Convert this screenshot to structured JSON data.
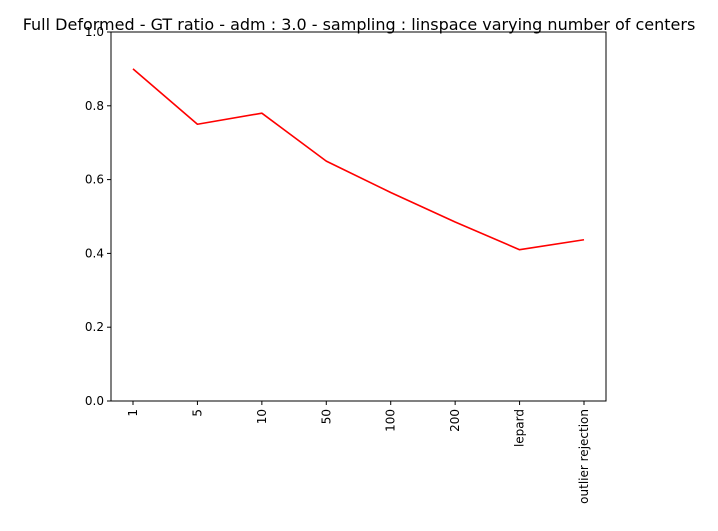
{
  "chart_data": {
    "type": "line",
    "title": "Full Deformed - GT ratio - adm : 3.0 - sampling : linspace varying number of centers",
    "xlabel": "",
    "ylabel": "",
    "categories": [
      "1",
      "5",
      "10",
      "50",
      "100",
      "200",
      "lepard",
      "outlier rejection"
    ],
    "series": [
      {
        "values": [
          0.9,
          0.75,
          0.78,
          0.65,
          0.565,
          0.485,
          0.41,
          0.437
        ],
        "color": "#ff0000"
      }
    ],
    "ylim": [
      0,
      1
    ],
    "yticks": [
      "0.0",
      "0.2",
      "0.4",
      "0.6",
      "0.8",
      "1.0"
    ],
    "grid": false
  }
}
